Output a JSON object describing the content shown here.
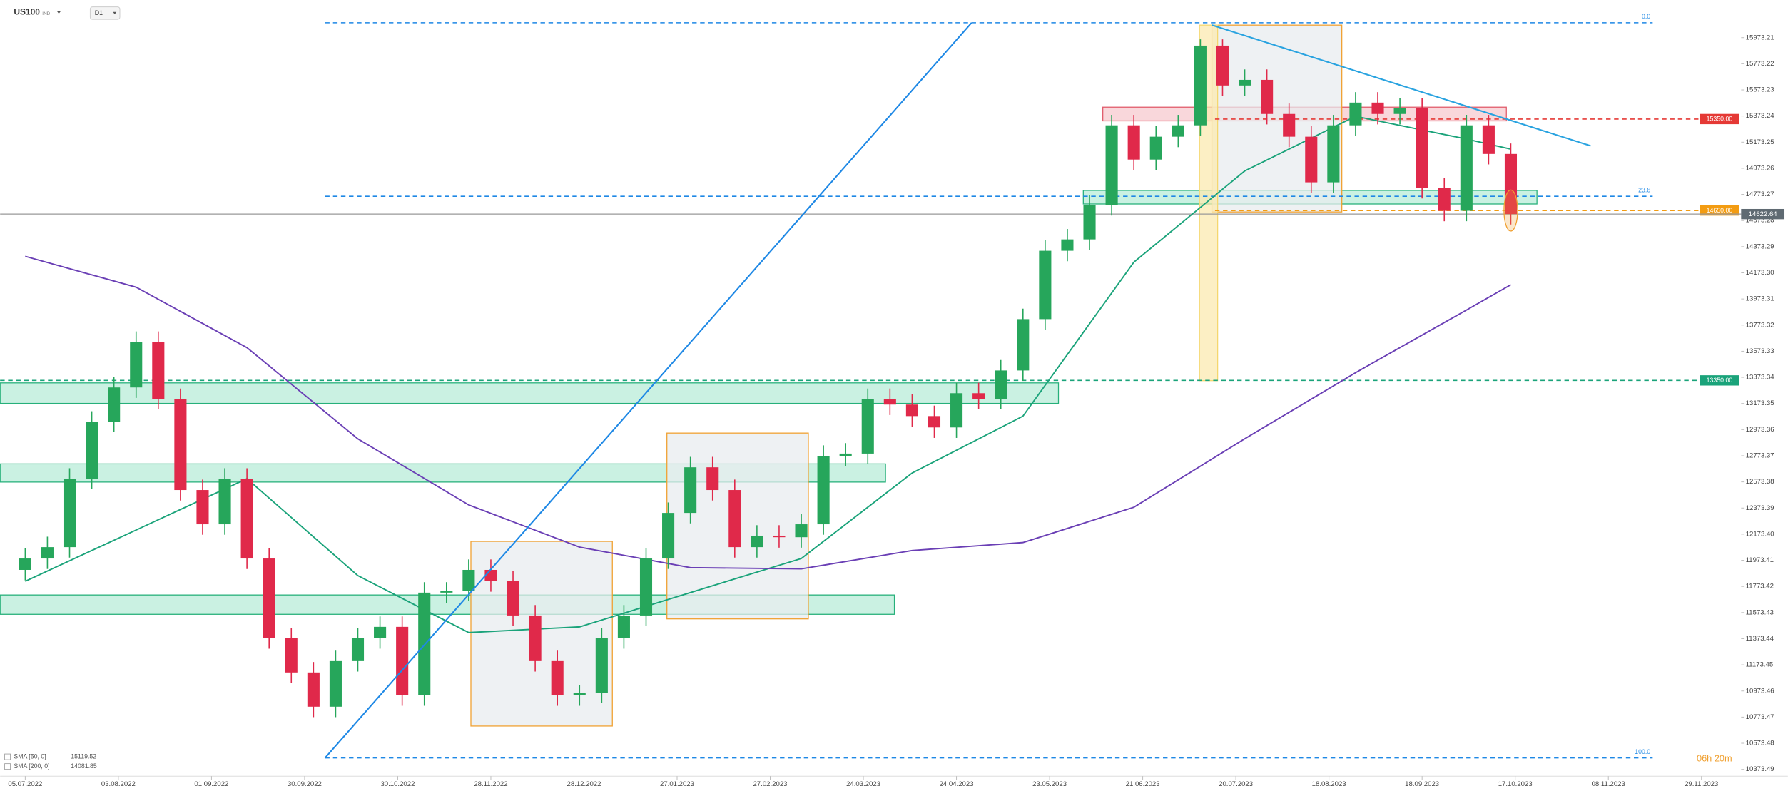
{
  "chart_data": {
    "type": "candlestick",
    "symbol": "US100",
    "symbol_tag": "IND",
    "timeframe": "D1",
    "countdown": "06h 20m",
    "xlim": [
      -5.66,
      380
    ],
    "ylim": [
      10330,
      16261
    ],
    "xticks": [
      {
        "value": 0,
        "label": "05.07.2022"
      },
      {
        "value": 21,
        "label": "03.08.2022"
      },
      {
        "value": 42,
        "label": "01.09.2022"
      },
      {
        "value": 63,
        "label": "30.09.2022"
      },
      {
        "value": 84,
        "label": "30.10.2022"
      },
      {
        "value": 105,
        "label": "28.11.2022"
      },
      {
        "value": 126,
        "label": "28.12.2022"
      },
      {
        "value": 147,
        "label": "27.01.2023"
      },
      {
        "value": 168,
        "label": "27.02.2023"
      },
      {
        "value": 189,
        "label": "24.03.2023"
      },
      {
        "value": 210,
        "label": "24.04.2023"
      },
      {
        "value": 231,
        "label": "23.05.2023"
      },
      {
        "value": 252,
        "label": "21.06.2023"
      },
      {
        "value": 273,
        "label": "20.07.2023"
      },
      {
        "value": 294,
        "label": "18.08.2023"
      },
      {
        "value": 315,
        "label": "18.09.2023"
      },
      {
        "value": 336,
        "label": "17.10.2023"
      },
      {
        "value": 357,
        "label": "08.11.2023"
      },
      {
        "value": 378,
        "label": "29.11.2023"
      }
    ],
    "yticks": [
      15973.21,
      15773.22,
      15573.23,
      15373.24,
      15173.25,
      14973.26,
      14773.27,
      14573.28,
      14373.29,
      {
        "value": 14173.3,
        "label": "14173.30"
      },
      13973.31,
      13773.32,
      13573.33,
      13373.34,
      13173.35,
      12973.36,
      12773.37,
      12573.38,
      12373.39,
      {
        "value": 12173.4,
        "label": "12173.40"
      },
      11973.41,
      11773.42,
      11573.43,
      11373.44,
      11173.45,
      10973.46,
      10773.47,
      10573.48,
      10373.49
    ],
    "up_color": "#26a65b",
    "down_color": "#e0294a",
    "x": [
      0,
      5,
      10,
      15,
      20,
      25,
      30,
      35,
      40,
      45,
      50,
      55,
      60,
      65,
      70,
      75,
      80,
      85,
      90,
      95,
      100,
      105,
      110,
      115,
      120,
      125,
      130,
      135,
      140,
      145,
      150,
      155,
      160,
      165,
      170,
      175,
      180,
      185,
      190,
      195,
      200,
      205,
      210,
      215,
      220,
      225,
      230,
      235,
      240,
      245,
      250,
      255,
      260,
      265,
      270,
      275,
      280,
      285,
      290,
      295,
      300,
      305,
      310,
      315,
      320,
      325,
      330,
      335
    ],
    "ohlc": [
      [
        11900,
        12067,
        11820,
        11987
      ],
      [
        11987,
        12154,
        11907,
        12074
      ],
      [
        12074,
        12678,
        11994,
        12598
      ],
      [
        12598,
        13114,
        12518,
        13034
      ],
      [
        13034,
        13376,
        12954,
        13296
      ],
      [
        13296,
        13725,
        13216,
        13645
      ],
      [
        13645,
        13725,
        13128,
        13208
      ],
      [
        13208,
        13288,
        12431,
        12511
      ],
      [
        12511,
        12591,
        12169,
        12249
      ],
      [
        12249,
        12678,
        12169,
        12598
      ],
      [
        12598,
        12678,
        11907,
        11987
      ],
      [
        11987,
        12067,
        11297,
        11377
      ],
      [
        11377,
        11457,
        11035,
        11115
      ],
      [
        11115,
        11195,
        10773,
        10853
      ],
      [
        10853,
        11282,
        10773,
        11202
      ],
      [
        11202,
        11457,
        11122,
        11377
      ],
      [
        11377,
        11544,
        11297,
        11464
      ],
      [
        11464,
        11544,
        10860,
        10940
      ],
      [
        10940,
        11806,
        10860,
        11726
      ],
      [
        11726,
        11806,
        11646,
        11740
      ],
      [
        11740,
        11980,
        11660,
        11900
      ],
      [
        11900,
        11980,
        11733,
        11813
      ],
      [
        11813,
        11893,
        11471,
        11551
      ],
      [
        11551,
        11631,
        11122,
        11202
      ],
      [
        11202,
        11282,
        10860,
        10940
      ],
      [
        10940,
        11020,
        10860,
        10960
      ],
      [
        10960,
        11457,
        10880,
        11377
      ],
      [
        11377,
        11631,
        11297,
        11551
      ],
      [
        11551,
        12067,
        11471,
        11987
      ],
      [
        11987,
        12416,
        11907,
        12336
      ],
      [
        12336,
        12765,
        12256,
        12685
      ],
      [
        12685,
        12765,
        12431,
        12511
      ],
      [
        12511,
        12591,
        11994,
        12074
      ],
      [
        12074,
        12242,
        11994,
        12162
      ],
      [
        12162,
        12242,
        12070,
        12150
      ],
      [
        12150,
        12329,
        12070,
        12249
      ],
      [
        12249,
        12853,
        12169,
        12773
      ],
      [
        12773,
        12870,
        12693,
        12790
      ],
      [
        12790,
        13288,
        12710,
        13208
      ],
      [
        13208,
        13288,
        13085,
        13165
      ],
      [
        13165,
        13245,
        12997,
        13077
      ],
      [
        13077,
        13157,
        12910,
        12990
      ],
      [
        12990,
        13332,
        12910,
        13252
      ],
      [
        13252,
        13332,
        13128,
        13208
      ],
      [
        13208,
        13506,
        13128,
        13426
      ],
      [
        13426,
        13899,
        13346,
        13819
      ],
      [
        13819,
        14422,
        13739,
        14342
      ],
      [
        14342,
        14509,
        14262,
        14429
      ],
      [
        14429,
        14771,
        14349,
        14691
      ],
      [
        14691,
        15382,
        14611,
        15302
      ],
      [
        15302,
        15382,
        14960,
        15040
      ],
      [
        15040,
        15295,
        14960,
        15215
      ],
      [
        15215,
        15382,
        15135,
        15302
      ],
      [
        15302,
        15960,
        15222,
        15912
      ],
      [
        15912,
        15960,
        15527,
        15607
      ],
      [
        15607,
        15730,
        15527,
        15650
      ],
      [
        15650,
        15730,
        15309,
        15389
      ],
      [
        15389,
        15469,
        15135,
        15215
      ],
      [
        15215,
        15295,
        14786,
        14866
      ],
      [
        14866,
        15382,
        14786,
        15302
      ],
      [
        15302,
        15556,
        15222,
        15476
      ],
      [
        15476,
        15556,
        15309,
        15389
      ],
      [
        15389,
        15512,
        15309,
        15432
      ],
      [
        15432,
        15512,
        14742,
        14822
      ],
      [
        14822,
        14902,
        14568,
        14648
      ],
      [
        14648,
        15382,
        14568,
        15302
      ],
      [
        15302,
        15382,
        15003,
        15083
      ],
      [
        15083,
        15163,
        14543,
        14623
      ]
    ],
    "sma": [
      {
        "name": "SMA [50, 0]",
        "last": 15119.52,
        "color": "#1aa37a",
        "x": [
          0,
          25,
          50,
          75,
          100,
          125,
          150,
          175,
          200,
          225,
          250,
          275,
          300,
          325,
          335
        ],
        "values": [
          11813,
          12205,
          12598,
          11856,
          11420,
          11464,
          11726,
          11987,
          12641,
          13077,
          14255,
          14953,
          15371,
          15197,
          15120
        ]
      },
      {
        "name": "SMA [200, 0]",
        "last": 14081.85,
        "color": "#6a3fb5",
        "x": [
          0,
          25,
          50,
          75,
          100,
          125,
          150,
          175,
          200,
          225,
          250,
          275,
          300,
          325,
          335
        ],
        "values": [
          14299,
          14063,
          13601,
          12903,
          12397,
          12074,
          11917,
          11908,
          12048,
          12109,
          12380,
          12903,
          13409,
          13889,
          14082
        ]
      }
    ],
    "zones": [
      {
        "x": [
          -5.66,
          233
        ],
        "y": [
          13174,
          13331
        ],
        "fill": "#b8ecd8",
        "stroke": "#26b07a"
      },
      {
        "x": [
          -5.66,
          194
        ],
        "y": [
          12572,
          12711
        ],
        "fill": "#b8ecd8",
        "stroke": "#26b07a"
      },
      {
        "x": [
          -5.66,
          196
        ],
        "y": [
          11560,
          11708
        ],
        "fill": "#b8ecd8",
        "stroke": "#26b07a"
      },
      {
        "x": [
          238.6,
          340.9
        ],
        "y": [
          14700,
          14804
        ],
        "fill": "#b8ecd8",
        "stroke": "#26b07a"
      },
      {
        "x": [
          243,
          334
        ],
        "y": [
          15336,
          15441
        ],
        "fill": "#f7c9cf",
        "stroke": "#e05a6a"
      },
      {
        "x": [
          100.5,
          132.4
        ],
        "y": [
          10705,
          12118
        ],
        "fill": "#e8ecef",
        "stroke": "#f0a030"
      },
      {
        "x": [
          144.7,
          176.6
        ],
        "y": [
          11525,
          12947
        ],
        "fill": "#e8ecef",
        "stroke": "#f0a030"
      },
      {
        "x": [
          267.6,
          296.9
        ],
        "y": [
          14639,
          16069
        ],
        "fill": "#e8ecef",
        "stroke": "#f0a030"
      },
      {
        "x": [
          264.8,
          268.9
        ],
        "y": [
          13348,
          16069
        ],
        "fill": "#fbeab0",
        "stroke": "#f5d76e"
      }
    ],
    "fib": {
      "x": [
        67.6,
        367
      ],
      "color": "#1e88e5",
      "levels": [
        {
          "level": {
            "value": 0,
            "label": "0.0"
          },
          "price": 16087
        },
        {
          "level": 23.6,
          "price": 14759
        },
        {
          "level": {
            "value": 100,
            "label": "100.0"
          },
          "price": 10461
        }
      ]
    },
    "levels": [
      {
        "price": {
          "value": 15350,
          "label": "15350.00"
        },
        "color": "#e53935",
        "x0": 268.3
      },
      {
        "price": {
          "value": 14650,
          "label": "14650.00"
        },
        "color": "#f39c12",
        "x0": 268.3
      },
      {
        "price": {
          "value": 13350,
          "label": "13350.00"
        },
        "color": "#1aa37a",
        "x0": -5.66
      }
    ],
    "last_price": 14622.64,
    "trendlines": [
      {
        "x": [
          67.6,
          213.4
        ],
        "y": [
          10461,
          16087
        ],
        "color": "#1e88e5"
      },
      {
        "x": [
          267.6,
          353
        ],
        "y": [
          16069,
          15145
        ],
        "color": "#29a3e0"
      }
    ],
    "marker": {
      "x": 335,
      "y": 14650,
      "color": "#f0a030"
    }
  }
}
